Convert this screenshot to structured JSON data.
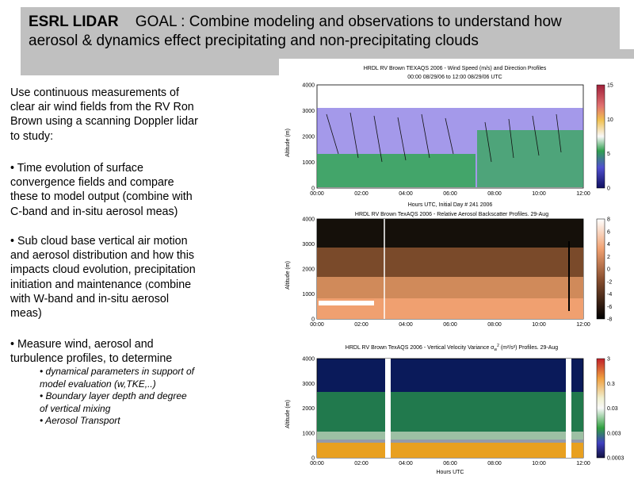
{
  "slide": {
    "heading": "ESRL LIDAR",
    "goal_line1": "GOAL : Combine modeling and observations to understand how",
    "goal_line2": "aerosol & dynamics effect precipitating and non-precipitating clouds"
  },
  "body": {
    "intro": [
      "Use continuous measurements of",
      "clear air wind fields from the RV Ron",
      "Brown using a scanning Doppler lidar",
      "to study:"
    ],
    "bullet1": [
      "• Time evolution of surface",
      "convergence fields and compare",
      "these to model output (combine with",
      "C-band and in-situ aerosol meas)"
    ],
    "bullet2_a": [
      "• Sub cloud base vertical air motion",
      "and aerosol distribution and how this",
      "impacts cloud evolution, precipitation"
    ],
    "bullet2_b_pre": "initiation and maintenance ",
    "bullet2_b_small": "(",
    "bullet2_b_post": "combine",
    "bullet2_c": [
      "with W-band and in-situ aerosol",
      "meas)"
    ],
    "bullet3": [
      "• Measure wind, aerosol and",
      "turbulence profiles, to determine"
    ],
    "subbullets": [
      "• dynamical parameters in support of",
      "model evaluation (w,TKE,..)",
      "• Boundary layer depth and degree",
      "of vertical mixing",
      "• Aerosol Transport"
    ]
  },
  "panels": [
    {
      "title1": "HRDL RV Brown TEXAQS 2006 - Wind Speed (m/s) and Direction Profiles",
      "title2": "00:00 08/29/06 to 12:00 08/29/06  UTC",
      "ylabel": "Altitude (m)",
      "xlabel": "Hours UTC, Initial Day # 241  2006",
      "yticks": [
        "4000",
        "3000",
        "2000",
        "1000",
        "0"
      ],
      "xticks": [
        "00:00",
        "02:00",
        "04:00",
        "06:00",
        "08:00",
        "10:00",
        "12:00"
      ],
      "cticks": [
        "15",
        "10",
        "5",
        "0"
      ]
    },
    {
      "title1": "HRDL RV Brown TexAQS 2006 - Relative Aerosol Backscatter Profiles. 29-Aug",
      "ylabel": "Altitude (m)",
      "yticks": [
        "4000",
        "3000",
        "2000",
        "1000",
        "0"
      ],
      "xticks": [
        "00:00",
        "02:00",
        "04:00",
        "06:00",
        "08:00",
        "10:00",
        "12:00"
      ],
      "cticks": [
        "8",
        "6",
        "4",
        "2",
        "0",
        "-2",
        "-4",
        "-6",
        "-8"
      ]
    },
    {
      "title1": "HRDL RV Brown TexAQS 2006 - Vertical Velocity Variance σ",
      "title_sub": "w",
      "title_sup": "2",
      "title2": " (m²/s²) Profiles. 29-Aug",
      "ylabel": "Altitude (m)",
      "xlabel": "Hours UTC",
      "yticks": [
        "4000",
        "3000",
        "2000",
        "1000",
        "0"
      ],
      "xticks": [
        "00:00",
        "02:00",
        "04:00",
        "06:00",
        "08:00",
        "10:00",
        "12:00"
      ],
      "cticks": [
        "3",
        "0.3",
        "0.03",
        "0.003",
        "0.0003"
      ]
    }
  ],
  "colors": {
    "slide_gray": "#c0c0c0",
    "wind_blue": "#3a2fd0",
    "wind_green": "#2aa84a",
    "aerosol_dark": "#1a1008",
    "aerosol_light": "#f0a070",
    "variance_navy": "#0a1a5a",
    "variance_orange": "#e8a020"
  }
}
